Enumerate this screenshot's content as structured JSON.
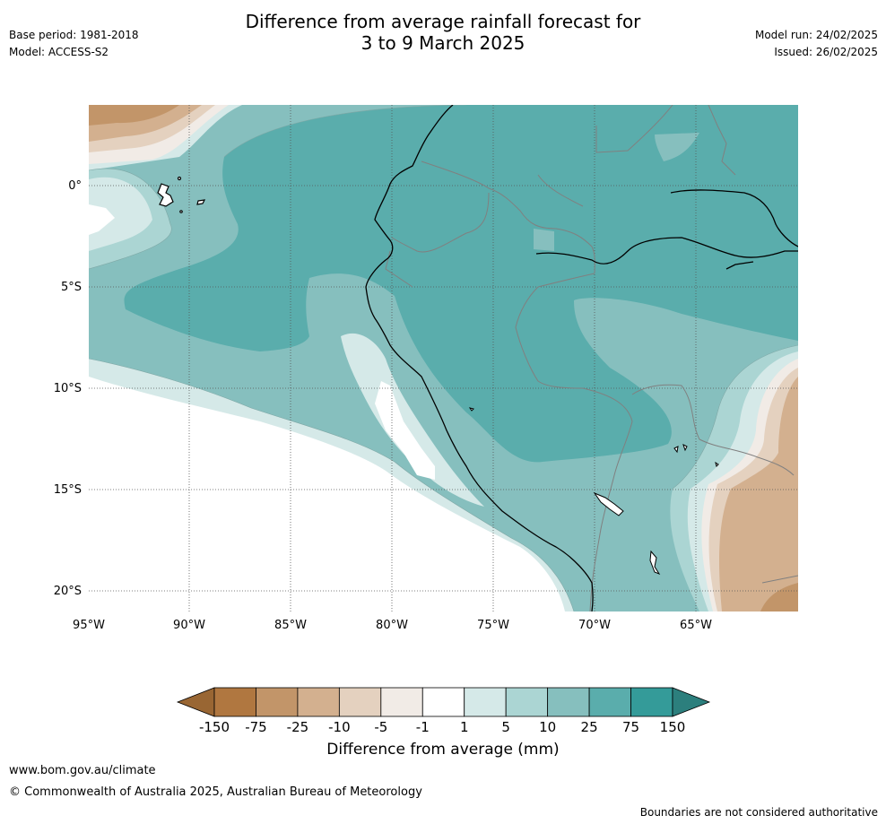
{
  "header": {
    "title_line1": "Difference from average rainfall forecast for",
    "title_line2": "3 to 9 March 2025",
    "base_period": "Base period: 1981-2018",
    "model": "Model: ACCESS-S2",
    "model_run": "Model run: 24/02/2025",
    "issued": "Issued: 26/02/2025"
  },
  "map": {
    "lat_labels": [
      "0°",
      "5°S",
      "10°S",
      "15°S",
      "20°S"
    ],
    "lon_labels": [
      "95°W",
      "90°W",
      "85°W",
      "80°W",
      "75°W",
      "70°W",
      "65°W"
    ]
  },
  "legend": {
    "tick_labels": [
      "-150",
      "-75",
      "-25",
      "-10",
      "-5",
      "-1",
      "1",
      "5",
      "10",
      "25",
      "75",
      "150"
    ],
    "label": "Difference from average (mm)",
    "colors": [
      "#996633",
      "#b07740",
      "#c29569",
      "#d3b08f",
      "#e4d1bf",
      "#f1ebe6",
      "#ffffff",
      "#d5e9e8",
      "#abd5d3",
      "#86bfbe",
      "#5aadac",
      "#349b99",
      "#2c7f7d"
    ]
  },
  "footer": {
    "url": "www.bom.gov.au/climate",
    "copyright": "© Commonwealth of Australia 2025, Australian Bureau of Meteorology",
    "disclaimer": "Boundaries are not considered authoritative"
  }
}
